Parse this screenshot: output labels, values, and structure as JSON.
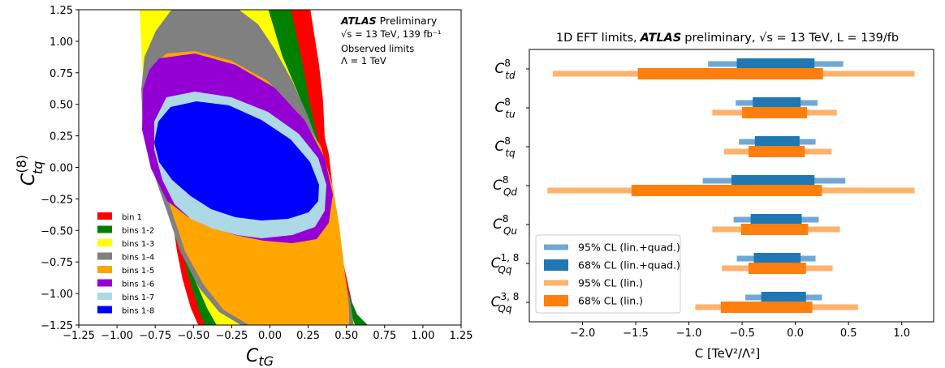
{
  "chart_data": [
    {
      "type": "contour",
      "xlabel": "C_tG",
      "ylabel": "C_tq^(8)",
      "xlim": [
        -1.25,
        1.25
      ],
      "ylim": [
        -1.25,
        1.25
      ],
      "xticks": [
        "−1.25",
        "−1.00",
        "−0.75",
        "−0.50",
        "−0.25",
        "0.00",
        "0.25",
        "0.50",
        "0.75",
        "1.00",
        "1.25"
      ],
      "yticks": [
        "1.25",
        "1.00",
        "0.75",
        "0.50",
        "0.25",
        "0.00",
        "−0.25",
        "−0.50",
        "−0.75",
        "−1.00",
        "−1.25"
      ],
      "annotation": {
        "atlas": "ATLAS",
        "preliminary": "Preliminary",
        "energy": "√s = 13 TeV, 139 fb⁻¹",
        "observed": "Observed limits",
        "lambda": "Λ = 1 TeV"
      },
      "legend_position": "lower-left",
      "regions": [
        {
          "name": "bin 1",
          "color": "#ff0000"
        },
        {
          "name": "bins 1-2",
          "color": "#008000"
        },
        {
          "name": "bins 1-3",
          "color": "#ffff00"
        },
        {
          "name": "bins 1-4",
          "color": "#808080"
        },
        {
          "name": "bins 1-5",
          "color": "#ffa500"
        },
        {
          "name": "bins 1-6",
          "color": "#9400d3"
        },
        {
          "name": "bins 1-7",
          "color": "#add8e6"
        },
        {
          "name": "bins 1-8",
          "color": "#0000ff"
        }
      ]
    },
    {
      "type": "interval",
      "title_pre": "1D EFT limits,",
      "title_atlas": "ATLAS",
      "title_post": "preliminary, √s = 13 TeV, L = 139/fb",
      "xlabel": "C [TeV²/Λ²]",
      "xlim": [
        -2.5,
        1.3
      ],
      "xticks": [
        -2.0,
        -1.5,
        -1.0,
        -0.5,
        0.0,
        0.5,
        1.0
      ],
      "xtick_labels": [
        "−2.0",
        "−1.5",
        "−1.0",
        "−0.5",
        "0.0",
        "0.5",
        "1.0"
      ],
      "legend_position": "lower-left",
      "series": [
        {
          "name": "95% CL (lin.+quad.)",
          "color": "#6fa8d6"
        },
        {
          "name": "68% CL (lin.+quad.)",
          "color": "#1f77b4"
        },
        {
          "name": "95% CL (lin.)",
          "color": "#ffb26b"
        },
        {
          "name": "68% CL (lin.)",
          "color": "#ff7f0e"
        }
      ],
      "operators": [
        {
          "base": "C",
          "sup": "8",
          "sub": "td",
          "quad95": [
            -0.82,
            0.45
          ],
          "quad68": [
            -0.55,
            0.18
          ],
          "lin95": [
            -2.28,
            1.12
          ],
          "lin68": [
            -1.48,
            0.26
          ]
        },
        {
          "base": "C",
          "sup": "8",
          "sub": "tu",
          "quad95": [
            -0.56,
            0.21
          ],
          "quad68": [
            -0.4,
            0.05
          ],
          "lin95": [
            -0.78,
            0.39
          ],
          "lin68": [
            -0.5,
            0.11
          ]
        },
        {
          "base": "C",
          "sup": "8",
          "sub": "tq",
          "quad95": [
            -0.53,
            0.19
          ],
          "quad68": [
            -0.38,
            0.04
          ],
          "lin95": [
            -0.67,
            0.34
          ],
          "lin68": [
            -0.44,
            0.09
          ]
        },
        {
          "base": "C",
          "sup": "8",
          "sub": "Qd",
          "quad95": [
            -0.87,
            0.47
          ],
          "quad68": [
            -0.6,
            0.18
          ],
          "lin95": [
            -2.33,
            1.12
          ],
          "lin68": [
            -1.54,
            0.25
          ]
        },
        {
          "base": "C",
          "sup": "8",
          "sub": "Qu",
          "quad95": [
            -0.58,
            0.22
          ],
          "quad68": [
            -0.42,
            0.06
          ],
          "lin95": [
            -0.78,
            0.42
          ],
          "lin68": [
            -0.51,
            0.12
          ]
        },
        {
          "base": "C",
          "sup": "1, 8",
          "sub": "Qq",
          "quad95": [
            -0.55,
            0.19
          ],
          "quad68": [
            -0.39,
            0.05
          ],
          "lin95": [
            -0.69,
            0.35
          ],
          "lin68": [
            -0.44,
            0.1
          ]
        },
        {
          "base": "C",
          "sup": "3, 8",
          "sub": "Qq",
          "quad95": [
            -0.47,
            0.25
          ],
          "quad68": [
            -0.32,
            0.1
          ],
          "lin95": [
            -0.94,
            0.59
          ],
          "lin68": [
            -0.7,
            0.16
          ]
        }
      ]
    }
  ]
}
